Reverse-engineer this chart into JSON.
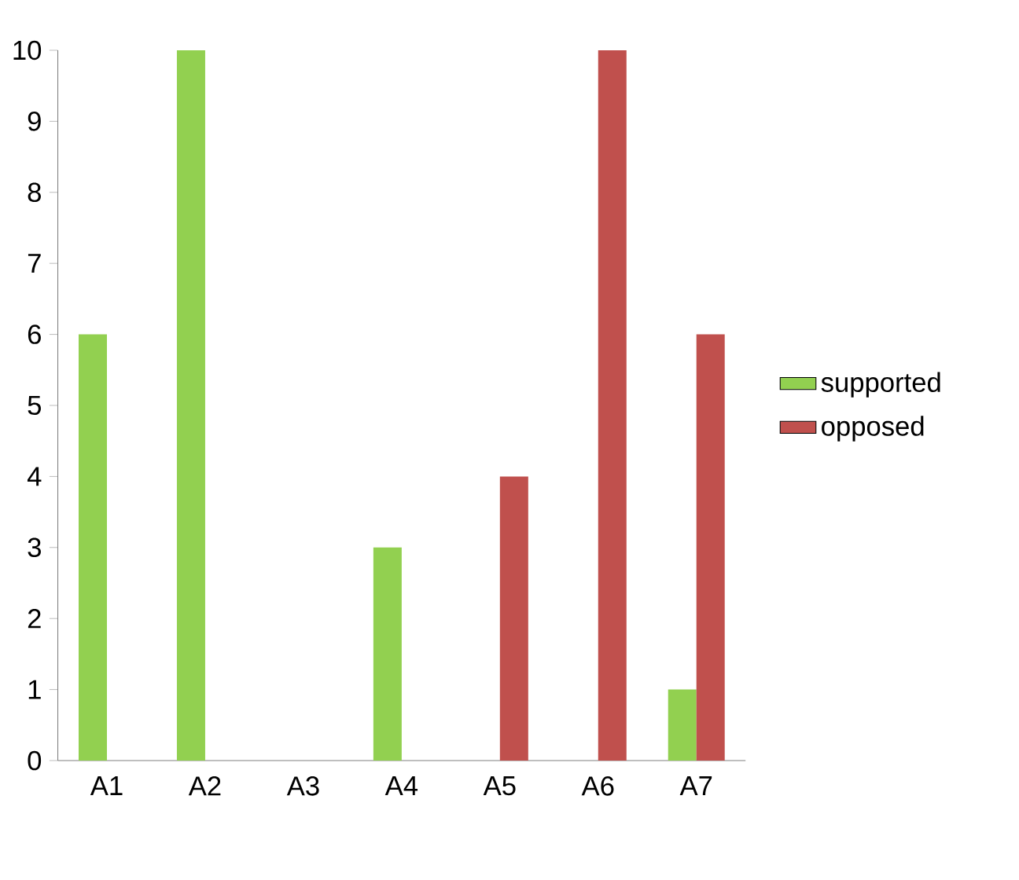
{
  "chart_data": {
    "type": "bar",
    "categories": [
      "A1",
      "A2",
      "A3",
      "A4",
      "A5",
      "A6",
      "A7"
    ],
    "series": [
      {
        "name": "supported",
        "color": "#92d050",
        "values": [
          6,
          10,
          0,
          3,
          0,
          0,
          1
        ]
      },
      {
        "name": "opposed",
        "color": "#c0504d",
        "values": [
          0,
          0,
          0,
          0,
          4,
          10,
          6
        ]
      }
    ],
    "ylim": [
      0,
      10
    ],
    "yticks": [
      0,
      1,
      2,
      3,
      4,
      5,
      6,
      7,
      8,
      9,
      10
    ],
    "grid": false,
    "legend": "right"
  }
}
